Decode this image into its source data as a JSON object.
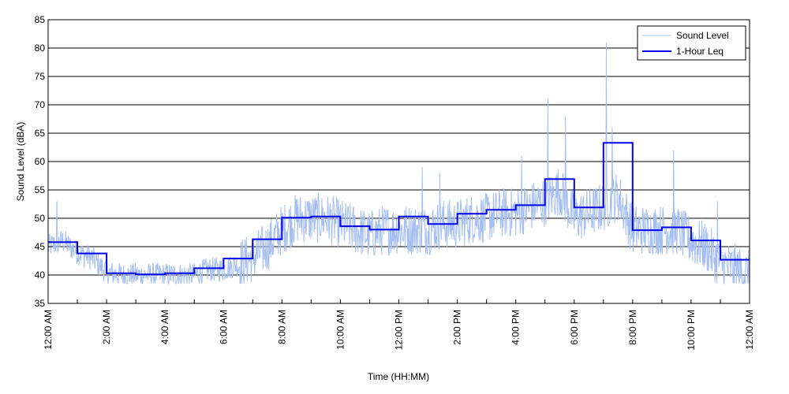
{
  "chart_data": {
    "type": "line",
    "title": "",
    "xlabel": "Time (HH:MM)",
    "ylabel": "Sound Level (dBA)",
    "xlim": [
      "12:00 AM",
      "12:00 AM (next day)"
    ],
    "ylim": [
      35,
      85
    ],
    "y_ticks": [
      35,
      40,
      45,
      50,
      55,
      60,
      65,
      70,
      75,
      80,
      85
    ],
    "x_tick_hours": [
      0,
      2,
      4,
      6,
      8,
      10,
      12,
      14,
      16,
      18,
      20,
      22,
      24
    ],
    "x_tick_labels": [
      "12:00 AM",
      "2:00 AM",
      "4:00 AM",
      "6:00 AM",
      "8:00 AM",
      "10:00 AM",
      "12:00 PM",
      "2:00 PM",
      "4:00 PM",
      "6:00 PM",
      "8:00 PM",
      "10:00 PM",
      "12:00 AM"
    ],
    "grid": "horizontal",
    "legend": {
      "placement": "top-right",
      "entries": [
        "Sound Level",
        "1-Hour Leq"
      ]
    },
    "series": [
      {
        "name": "Sound Level",
        "color": "#a6bff2",
        "style": "thin noisy line",
        "x_hours": [
          0,
          0.5,
          1,
          1.5,
          2,
          2.5,
          3,
          3.5,
          4,
          4.5,
          5,
          5.5,
          6,
          6.5,
          7,
          7.5,
          8,
          8.5,
          9,
          9.5,
          10,
          10.5,
          11,
          11.5,
          12,
          12.5,
          13,
          13.5,
          14,
          14.5,
          15,
          15.5,
          16,
          16.5,
          17,
          17.5,
          18,
          18.5,
          19,
          19.5,
          20,
          20.5,
          21,
          21.5,
          22,
          22.5,
          23,
          23.5,
          24
        ],
        "y": [
          45,
          46,
          44,
          43,
          40.5,
          40,
          40,
          40,
          40,
          40,
          40,
          41,
          41,
          42,
          43,
          45,
          48,
          50,
          50,
          50,
          49,
          48,
          47,
          48,
          48,
          48,
          48,
          49,
          49,
          50,
          50,
          51,
          51,
          52,
          53,
          55,
          50,
          51,
          52,
          54,
          48,
          48,
          48,
          48,
          46,
          45,
          42,
          41,
          40
        ],
        "spikes": [
          {
            "x_hours": 0.3,
            "y": 53
          },
          {
            "x_hours": 12.8,
            "y": 59
          },
          {
            "x_hours": 13.4,
            "y": 58
          },
          {
            "x_hours": 16.2,
            "y": 61
          },
          {
            "x_hours": 17.1,
            "y": 71
          },
          {
            "x_hours": 17.7,
            "y": 68
          },
          {
            "x_hours": 19.1,
            "y": 81
          },
          {
            "x_hours": 19.3,
            "y": 66
          },
          {
            "x_hours": 21.4,
            "y": 62
          },
          {
            "x_hours": 22.9,
            "y": 53
          }
        ]
      },
      {
        "name": "1-Hour Leq",
        "color": "#0000ee",
        "style": "step",
        "hour_starts": [
          0,
          1,
          2,
          3,
          4,
          5,
          6,
          7,
          8,
          9,
          10,
          11,
          12,
          13,
          14,
          15,
          16,
          17,
          18,
          19,
          20,
          21,
          22,
          23
        ],
        "values": [
          45.8,
          43.8,
          40.3,
          40.1,
          40.3,
          41.2,
          42.9,
          46.3,
          50.1,
          50.3,
          48.6,
          48.0,
          50.3,
          49.0,
          50.8,
          51.5,
          52.3,
          56.9,
          51.9,
          63.3,
          47.9,
          48.4,
          46.1,
          42.7
        ]
      }
    ]
  }
}
